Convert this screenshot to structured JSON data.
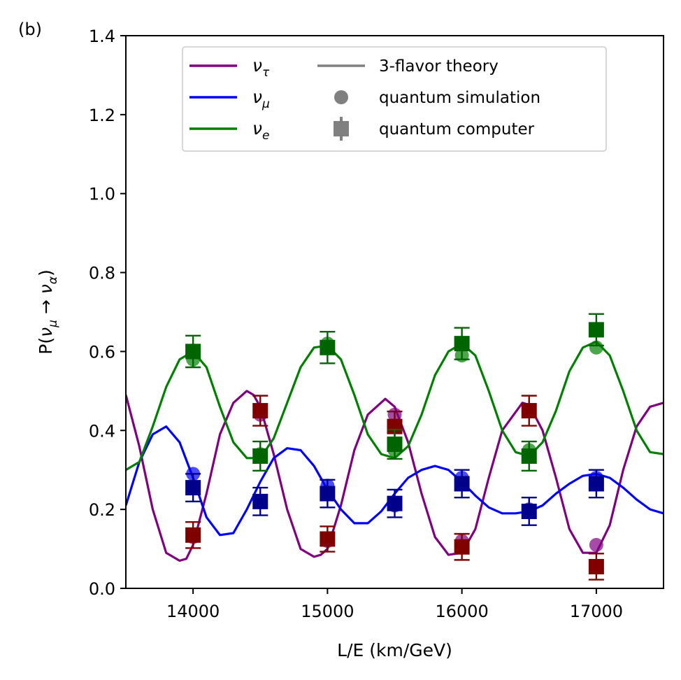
{
  "panel_label": "(b)",
  "chart_data": {
    "type": "line",
    "title": "",
    "xlabel": "L/E (km/GeV)",
    "ylabel_prefix": "P(",
    "ylabel_from": "ν",
    "ylabel_from_sub": "μ",
    "ylabel_arrow": " → ",
    "ylabel_to": "ν",
    "ylabel_to_sub": "α",
    "ylabel_suffix": ")",
    "xlim": [
      13500,
      17500
    ],
    "ylim": [
      0.0,
      1.4
    ],
    "xticks": [
      14000,
      15000,
      16000,
      17000
    ],
    "yticks": [
      0.0,
      0.2,
      0.4,
      0.6,
      0.8,
      1.0,
      1.2,
      1.4
    ],
    "ytick_labels": [
      "0.0",
      "0.2",
      "0.4",
      "0.6",
      "0.8",
      "1.0",
      "1.2",
      "1.4"
    ],
    "xtick_labels": [
      "14000",
      "15000",
      "16000",
      "17000"
    ],
    "grid": false,
    "legend_position": "top-center",
    "legend": [
      {
        "key": "tau",
        "symbol": "ν",
        "sub": "τ",
        "kind": "line",
        "color": "#800080"
      },
      {
        "key": "mu",
        "symbol": "ν",
        "sub": "μ",
        "kind": "line",
        "color": "#0000ff"
      },
      {
        "key": "e",
        "symbol": "ν",
        "sub": "e",
        "kind": "line",
        "color": "#008000"
      },
      {
        "key": "theory",
        "label": "3-flavor theory",
        "kind": "line",
        "color": "#808080"
      },
      {
        "key": "sim",
        "label": "quantum simulation",
        "kind": "circle",
        "color": "#808080"
      },
      {
        "key": "qc",
        "label": "quantum computer",
        "kind": "square-errorbar",
        "color": "#808080"
      }
    ],
    "theory_curves": [
      {
        "name": "ν_τ",
        "color": "#800080",
        "x": [
          13500,
          13600,
          13700,
          13800,
          13900,
          13950,
          14000,
          14100,
          14200,
          14300,
          14400,
          14450,
          14500,
          14600,
          14700,
          14800,
          14900,
          14950,
          15000,
          15100,
          15200,
          15300,
          15430,
          15500,
          15600,
          15700,
          15800,
          15900,
          16000,
          16100,
          16200,
          16300,
          16450,
          16500,
          16600,
          16700,
          16800,
          16900,
          17000,
          17100,
          17200,
          17300,
          17400,
          17500
        ],
        "y": [
          0.49,
          0.36,
          0.2,
          0.09,
          0.07,
          0.075,
          0.11,
          0.24,
          0.39,
          0.47,
          0.5,
          0.49,
          0.46,
          0.34,
          0.2,
          0.1,
          0.08,
          0.085,
          0.1,
          0.21,
          0.35,
          0.44,
          0.48,
          0.46,
          0.37,
          0.24,
          0.13,
          0.085,
          0.09,
          0.15,
          0.28,
          0.4,
          0.47,
          0.465,
          0.4,
          0.28,
          0.15,
          0.09,
          0.09,
          0.16,
          0.3,
          0.41,
          0.46,
          0.47
        ]
      },
      {
        "name": "ν_μ",
        "color": "#0000ff",
        "x": [
          13500,
          13600,
          13700,
          13800,
          13900,
          14000,
          14100,
          14200,
          14300,
          14400,
          14500,
          14600,
          14700,
          14800,
          14900,
          15000,
          15100,
          15200,
          15300,
          15400,
          15500,
          15600,
          15700,
          15800,
          15900,
          16000,
          16100,
          16200,
          16300,
          16400,
          16500,
          16600,
          16700,
          16800,
          16900,
          17000,
          17100,
          17200,
          17300,
          17400,
          17500
        ],
        "y": [
          0.21,
          0.32,
          0.39,
          0.41,
          0.37,
          0.28,
          0.18,
          0.135,
          0.14,
          0.2,
          0.27,
          0.33,
          0.355,
          0.35,
          0.31,
          0.25,
          0.2,
          0.165,
          0.165,
          0.195,
          0.24,
          0.28,
          0.3,
          0.31,
          0.3,
          0.27,
          0.235,
          0.205,
          0.19,
          0.19,
          0.195,
          0.21,
          0.24,
          0.265,
          0.285,
          0.29,
          0.28,
          0.255,
          0.225,
          0.2,
          0.19
        ]
      },
      {
        "name": "ν_e",
        "color": "#008000",
        "x": [
          13500,
          13600,
          13700,
          13800,
          13900,
          14000,
          14100,
          14200,
          14300,
          14400,
          14500,
          14600,
          14700,
          14800,
          14900,
          15000,
          15100,
          15200,
          15300,
          15400,
          15500,
          15600,
          15700,
          15800,
          15900,
          16000,
          16100,
          16200,
          16300,
          16400,
          16500,
          16600,
          16700,
          16800,
          16900,
          17000,
          17100,
          17200,
          17300,
          17400,
          17500
        ],
        "y": [
          0.3,
          0.32,
          0.41,
          0.51,
          0.58,
          0.6,
          0.56,
          0.46,
          0.37,
          0.33,
          0.33,
          0.38,
          0.47,
          0.56,
          0.61,
          0.615,
          0.58,
          0.49,
          0.39,
          0.34,
          0.33,
          0.36,
          0.44,
          0.54,
          0.6,
          0.62,
          0.59,
          0.5,
          0.4,
          0.345,
          0.335,
          0.37,
          0.45,
          0.55,
          0.61,
          0.625,
          0.59,
          0.5,
          0.4,
          0.345,
          0.34
        ]
      }
    ],
    "simulation": [
      {
        "name": "ν_τ",
        "color": "#800080",
        "x": [
          14000,
          14500,
          15000,
          15500,
          16000,
          16500,
          17000
        ],
        "y": [
          0.13,
          0.44,
          0.12,
          0.44,
          0.12,
          0.45,
          0.11
        ]
      },
      {
        "name": "ν_μ",
        "color": "#0000ff",
        "x": [
          14000,
          14500,
          15000,
          15500,
          16000,
          16500,
          17000
        ],
        "y": [
          0.29,
          0.22,
          0.26,
          0.21,
          0.28,
          0.2,
          0.28
        ]
      },
      {
        "name": "ν_e",
        "color": "#008000",
        "x": [
          14000,
          14500,
          15000,
          15500,
          16000,
          16500,
          17000
        ],
        "y": [
          0.58,
          0.34,
          0.62,
          0.35,
          0.59,
          0.35,
          0.61
        ]
      }
    ],
    "quantum_computer": [
      {
        "name": "ν_τ",
        "color": "#800000",
        "x": [
          14000,
          14500,
          15000,
          15500,
          16000,
          16500,
          17000
        ],
        "y": [
          0.135,
          0.45,
          0.125,
          0.41,
          0.105,
          0.45,
          0.055
        ],
        "err": [
          0.033,
          0.038,
          0.032,
          0.038,
          0.033,
          0.038,
          0.033
        ]
      },
      {
        "name": "ν_μ",
        "color": "#00008b",
        "x": [
          14000,
          14500,
          15000,
          15500,
          16000,
          16500,
          17000
        ],
        "y": [
          0.255,
          0.22,
          0.24,
          0.215,
          0.265,
          0.195,
          0.265
        ],
        "err": [
          0.035,
          0.035,
          0.035,
          0.035,
          0.035,
          0.035,
          0.035
        ]
      },
      {
        "name": "ν_e",
        "color": "#006400",
        "x": [
          14000,
          14500,
          15000,
          15500,
          16000,
          16500,
          17000
        ],
        "y": [
          0.6,
          0.335,
          0.61,
          0.365,
          0.62,
          0.335,
          0.655
        ],
        "err": [
          0.04,
          0.037,
          0.04,
          0.037,
          0.04,
          0.037,
          0.04
        ]
      }
    ]
  }
}
